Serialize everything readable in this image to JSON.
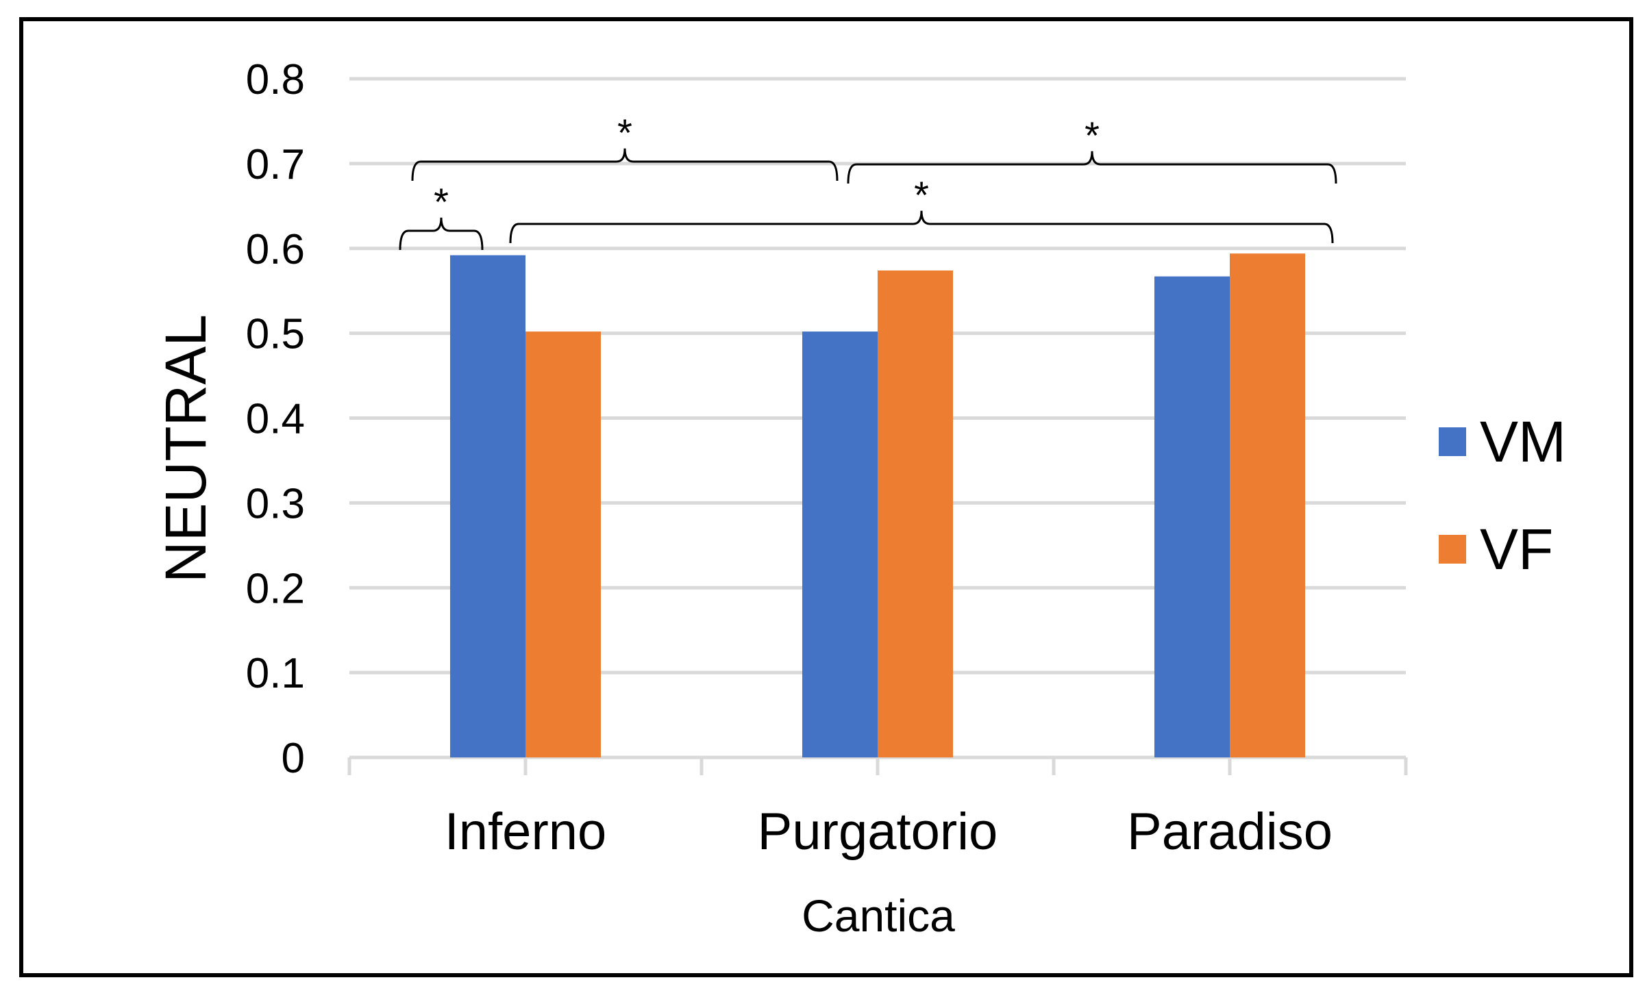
{
  "chart_data": {
    "type": "bar",
    "title": "",
    "xlabel": "Cantica",
    "ylabel": "NEUTRAL",
    "categories": [
      "Inferno",
      "Purgatorio",
      "Paradiso"
    ],
    "series": [
      {
        "name": "VM",
        "color": "#4472C4",
        "values": [
          0.592,
          0.502,
          0.567
        ]
      },
      {
        "name": "VF",
        "color": "#ED7D31",
        "values": [
          0.502,
          0.574,
          0.594
        ]
      }
    ],
    "ylim": [
      0,
      0.8
    ],
    "yticks": [
      "0",
      "0.1",
      "0.2",
      "0.3",
      "0.4",
      "0.5",
      "0.6",
      "0.7",
      "0.8"
    ],
    "grid": true,
    "legend": "right",
    "annotations": [
      {
        "label": "*",
        "between": "Inferno VM vs Inferno VF"
      },
      {
        "label": "*",
        "between": "Inferno vs Purgatorio"
      },
      {
        "label": "*",
        "between": "Purgatorio vs Paradiso"
      },
      {
        "label": "*",
        "between": "Inferno VF vs Paradiso VF"
      }
    ]
  }
}
